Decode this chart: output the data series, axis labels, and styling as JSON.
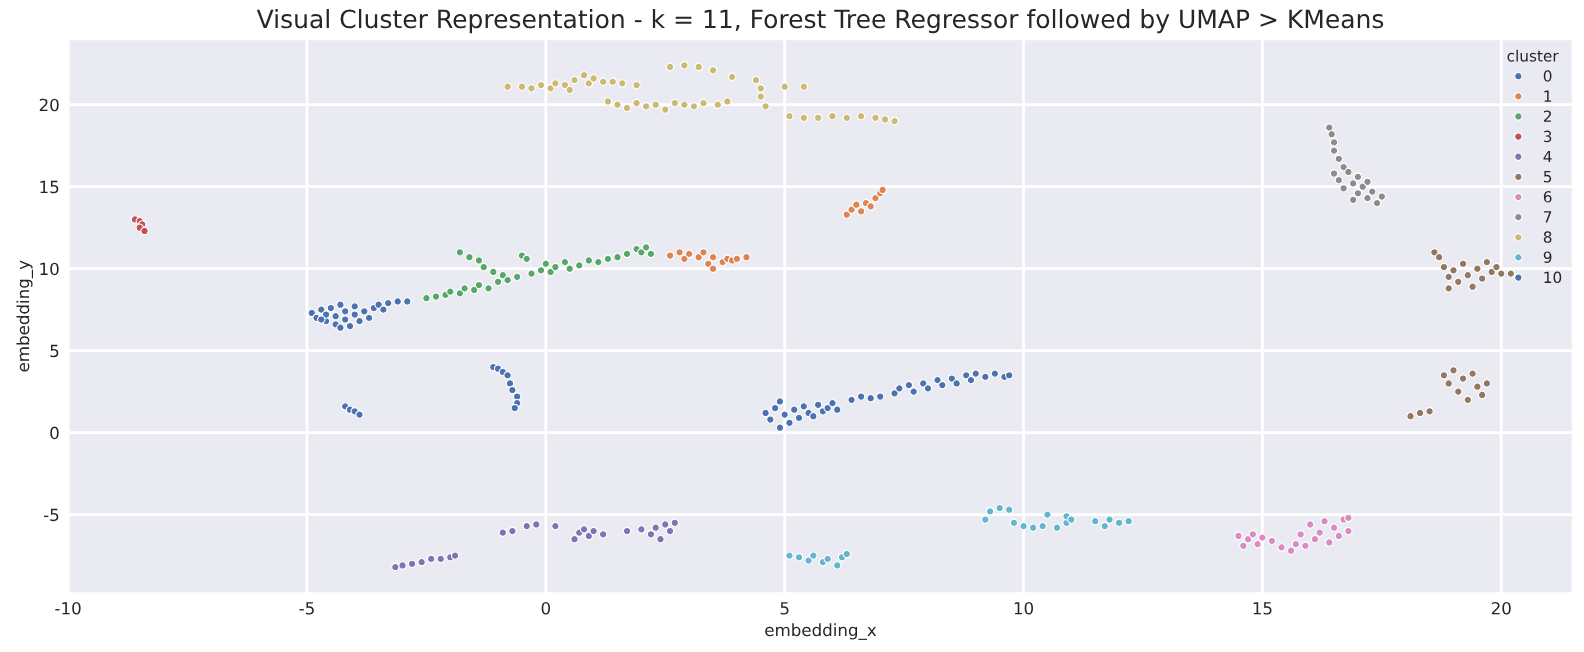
{
  "chart_data": {
    "type": "scatter",
    "title": "Visual Cluster Representation - k = 11, Forest Tree Regressor followed by UMAP > KMeans",
    "xlabel": "embedding_x",
    "ylabel": "embedding_y",
    "legend_title": "cluster",
    "legend": "top right",
    "grid": true,
    "marker": "circle",
    "xlim": [
      -10,
      21.5
    ],
    "ylim": [
      -9.8,
      24
    ],
    "xticks": [
      -10,
      -5,
      0,
      5,
      10,
      15,
      20
    ],
    "yticks": [
      -5,
      0,
      5,
      10,
      15,
      20
    ],
    "series": [
      {
        "name": "0",
        "color": "#4c72b0",
        "x": [
          -4.9,
          -4.8,
          -4.7,
          -4.6,
          -4.6,
          -4.5,
          -4.4,
          -4.4,
          -4.3,
          -4.2,
          -4.2,
          -4.1,
          -4.0,
          -4.0,
          -3.9,
          -3.8,
          -3.7,
          -3.6,
          -3.5,
          -3.4,
          -3.3,
          -3.1,
          -2.9,
          -4.7,
          -4.3,
          -4.2,
          -4.1,
          -4.0,
          -3.9,
          -1.1,
          -1.0,
          -0.9,
          -0.8,
          -0.75,
          -0.7,
          -0.6,
          -0.6,
          -0.65
        ],
        "values": [
          7.3,
          7.0,
          7.5,
          6.8,
          7.2,
          7.6,
          6.6,
          7.1,
          7.8,
          6.9,
          7.4,
          6.5,
          7.2,
          7.7,
          6.8,
          7.4,
          7.0,
          7.6,
          7.8,
          7.5,
          7.9,
          8.0,
          8.0,
          6.9,
          6.4,
          1.6,
          1.4,
          1.3,
          1.1,
          4.0,
          3.9,
          3.7,
          3.5,
          3.0,
          2.6,
          2.2,
          1.8,
          1.5
        ]
      },
      {
        "name": "1",
        "color": "#dd8452",
        "x": [
          2.6,
          2.8,
          2.9,
          3.0,
          3.2,
          3.3,
          3.4,
          3.5,
          3.5,
          3.7,
          3.8,
          3.9,
          4.0,
          4.2,
          6.3,
          6.4,
          6.5,
          6.6,
          6.7,
          6.8,
          6.9,
          7.0,
          7.05
        ],
        "values": [
          10.8,
          11.0,
          10.6,
          10.9,
          10.7,
          11.0,
          10.3,
          10.0,
          10.7,
          10.4,
          10.6,
          10.5,
          10.6,
          10.7,
          13.3,
          13.6,
          13.9,
          13.5,
          14.0,
          13.8,
          14.3,
          14.6,
          14.8
        ]
      },
      {
        "name": "2",
        "color": "#55a868",
        "x": [
          -2.5,
          -2.3,
          -2.1,
          -2.0,
          -1.8,
          -1.7,
          -1.5,
          -1.4,
          -1.2,
          -1.0,
          -1.8,
          -1.6,
          -1.4,
          -1.3,
          -1.1,
          -0.9,
          -0.8,
          -0.6,
          -0.5,
          -0.4,
          -0.3,
          -0.1,
          0.0,
          0.1,
          0.2,
          0.4,
          0.5,
          0.7,
          0.9,
          1.1,
          1.3,
          1.5,
          1.7,
          1.9,
          2.0,
          2.1,
          2.2
        ],
        "values": [
          8.2,
          8.3,
          8.4,
          8.6,
          8.5,
          8.8,
          8.7,
          9.0,
          8.8,
          9.2,
          11.0,
          10.7,
          10.5,
          10.1,
          9.8,
          9.6,
          9.3,
          9.5,
          10.8,
          10.6,
          9.7,
          9.9,
          10.3,
          9.8,
          10.1,
          10.4,
          10.0,
          10.2,
          10.5,
          10.4,
          10.6,
          10.7,
          10.9,
          11.2,
          11.0,
          11.3,
          10.9
        ]
      },
      {
        "name": "3",
        "color": "#c44e52",
        "x": [
          -8.6,
          -8.5,
          -8.45,
          -8.5,
          -8.4
        ],
        "values": [
          13.0,
          12.9,
          12.7,
          12.5,
          12.3
        ]
      },
      {
        "name": "4",
        "color": "#8172b3",
        "x": [
          -3.15,
          -3.0,
          -2.8,
          -2.6,
          -2.4,
          -2.2,
          -2.0,
          -1.9,
          -0.9,
          -0.7,
          -0.4,
          -0.2,
          0.2,
          0.6,
          0.7,
          0.8,
          0.9,
          1.0,
          1.2,
          1.7,
          2.0,
          2.2,
          2.3,
          2.4,
          2.5,
          2.6,
          2.7
        ],
        "values": [
          -8.2,
          -8.1,
          -8.0,
          -7.9,
          -7.7,
          -7.7,
          -7.6,
          -7.5,
          -6.1,
          -6.0,
          -5.7,
          -5.6,
          -5.7,
          -6.5,
          -6.1,
          -5.9,
          -6.3,
          -6.0,
          -6.2,
          -6.0,
          -5.9,
          -6.2,
          -5.8,
          -6.5,
          -5.6,
          -6.0,
          -5.5
        ]
      },
      {
        "name": "5",
        "color": "#937860",
        "x": [
          18.6,
          18.7,
          18.8,
          18.9,
          18.9,
          19.0,
          19.1,
          19.2,
          19.3,
          19.4,
          19.5,
          19.6,
          19.7,
          19.8,
          19.9,
          20.0,
          20.2,
          18.8,
          18.9,
          19.0,
          19.1,
          19.2,
          19.3,
          19.4,
          19.5,
          19.6,
          19.7,
          18.1,
          18.3,
          18.5
        ],
        "values": [
          11.0,
          10.7,
          10.1,
          9.5,
          8.8,
          9.9,
          9.2,
          10.3,
          9.6,
          8.9,
          10.0,
          9.4,
          10.4,
          9.8,
          10.1,
          9.7,
          9.7,
          3.5,
          3.0,
          3.8,
          2.5,
          3.3,
          2.0,
          3.6,
          2.8,
          2.3,
          3.0,
          1.0,
          1.2,
          1.3
        ]
      },
      {
        "name": "6",
        "color": "#da8bc3",
        "x": [
          14.5,
          14.6,
          14.7,
          14.8,
          14.9,
          15.0,
          15.2,
          15.4,
          15.6,
          15.7,
          15.8,
          15.9,
          16.0,
          16.1,
          16.2,
          16.3,
          16.4,
          16.5,
          16.6,
          16.7,
          16.8,
          16.8
        ],
        "values": [
          -6.3,
          -6.9,
          -6.5,
          -6.2,
          -6.8,
          -6.4,
          -6.6,
          -7.0,
          -7.2,
          -6.8,
          -6.2,
          -6.9,
          -5.6,
          -6.5,
          -6.1,
          -5.4,
          -6.7,
          -5.8,
          -6.3,
          -5.3,
          -6.0,
          -5.2
        ]
      },
      {
        "name": "7",
        "color": "#8c8c8c",
        "x": [
          16.4,
          16.45,
          16.5,
          16.5,
          16.6,
          16.7,
          16.5,
          16.6,
          16.8,
          16.9,
          16.7,
          17.0,
          17.0,
          17.1,
          17.2,
          17.2,
          17.3,
          17.4,
          17.5,
          16.9
        ],
        "values": [
          18.6,
          18.2,
          17.7,
          17.2,
          16.7,
          16.2,
          15.8,
          15.4,
          15.9,
          15.2,
          14.9,
          15.6,
          14.6,
          15.0,
          14.3,
          15.3,
          14.7,
          14.0,
          14.4,
          14.2
        ]
      },
      {
        "name": "8",
        "color": "#ccb974",
        "x": [
          -0.8,
          -0.5,
          -0.3,
          -0.1,
          0.1,
          0.2,
          0.4,
          0.5,
          0.6,
          0.8,
          0.9,
          1.0,
          1.2,
          1.4,
          1.6,
          1.9,
          1.3,
          1.5,
          1.7,
          1.9,
          2.1,
          2.3,
          2.5,
          2.7,
          2.9,
          3.1,
          3.3,
          3.6,
          3.8,
          2.6,
          2.9,
          3.2,
          3.5,
          3.9,
          4.4,
          4.5,
          4.5,
          4.6,
          5.0,
          5.4,
          5.1,
          5.4,
          5.7,
          6.0,
          6.3,
          6.6,
          6.9,
          7.1,
          7.3
        ],
        "values": [
          21.1,
          21.1,
          21.0,
          21.2,
          21.0,
          21.3,
          21.2,
          20.9,
          21.5,
          21.8,
          21.3,
          21.6,
          21.4,
          21.4,
          21.3,
          21.2,
          20.2,
          20.0,
          19.8,
          20.1,
          19.9,
          20.0,
          19.7,
          20.1,
          20.0,
          19.9,
          20.1,
          20.0,
          20.2,
          22.3,
          22.4,
          22.3,
          22.1,
          21.7,
          21.5,
          21.0,
          20.5,
          19.9,
          21.1,
          21.1,
          19.3,
          19.2,
          19.2,
          19.3,
          19.2,
          19.3,
          19.2,
          19.1,
          19.0
        ]
      },
      {
        "name": "9",
        "color": "#64b5cd",
        "x": [
          5.1,
          5.3,
          5.5,
          5.6,
          5.8,
          5.9,
          6.1,
          6.2,
          6.3,
          9.2,
          9.3,
          9.5,
          9.7,
          9.8,
          10.0,
          10.2,
          10.4,
          10.5,
          10.7,
          10.9,
          10.9,
          11.0,
          11.5,
          11.7,
          11.8,
          12.0,
          12.2
        ],
        "values": [
          -7.5,
          -7.6,
          -7.8,
          -7.5,
          -7.9,
          -7.7,
          -8.1,
          -7.6,
          -7.4,
          -5.3,
          -4.8,
          -4.6,
          -4.7,
          -5.5,
          -5.7,
          -5.8,
          -5.7,
          -5.0,
          -5.8,
          -5.5,
          -5.1,
          -5.3,
          -5.4,
          -5.7,
          -5.3,
          -5.5,
          -5.4
        ]
      },
      {
        "name": "10",
        "color": "#4c72b0",
        "x": [
          4.6,
          4.7,
          4.8,
          4.9,
          4.9,
          5.0,
          5.1,
          5.2,
          5.3,
          5.4,
          5.5,
          5.6,
          5.7,
          5.8,
          5.9,
          6.0,
          6.1,
          6.4,
          6.6,
          6.8,
          7.0,
          7.3,
          7.4,
          7.6,
          7.7,
          7.9,
          8.0,
          8.2,
          8.3,
          8.5,
          8.6,
          8.8,
          8.9,
          9.0,
          9.2,
          9.4,
          9.6,
          9.7
        ],
        "values": [
          1.2,
          0.8,
          1.5,
          0.3,
          1.9,
          1.1,
          0.6,
          1.4,
          0.9,
          1.6,
          1.2,
          1.0,
          1.7,
          1.3,
          1.5,
          1.8,
          1.4,
          2.0,
          2.2,
          2.1,
          2.2,
          2.4,
          2.7,
          2.9,
          2.5,
          3.0,
          2.7,
          3.2,
          2.9,
          3.3,
          3.0,
          3.5,
          3.2,
          3.6,
          3.4,
          3.6,
          3.4,
          3.5
        ]
      }
    ]
  }
}
